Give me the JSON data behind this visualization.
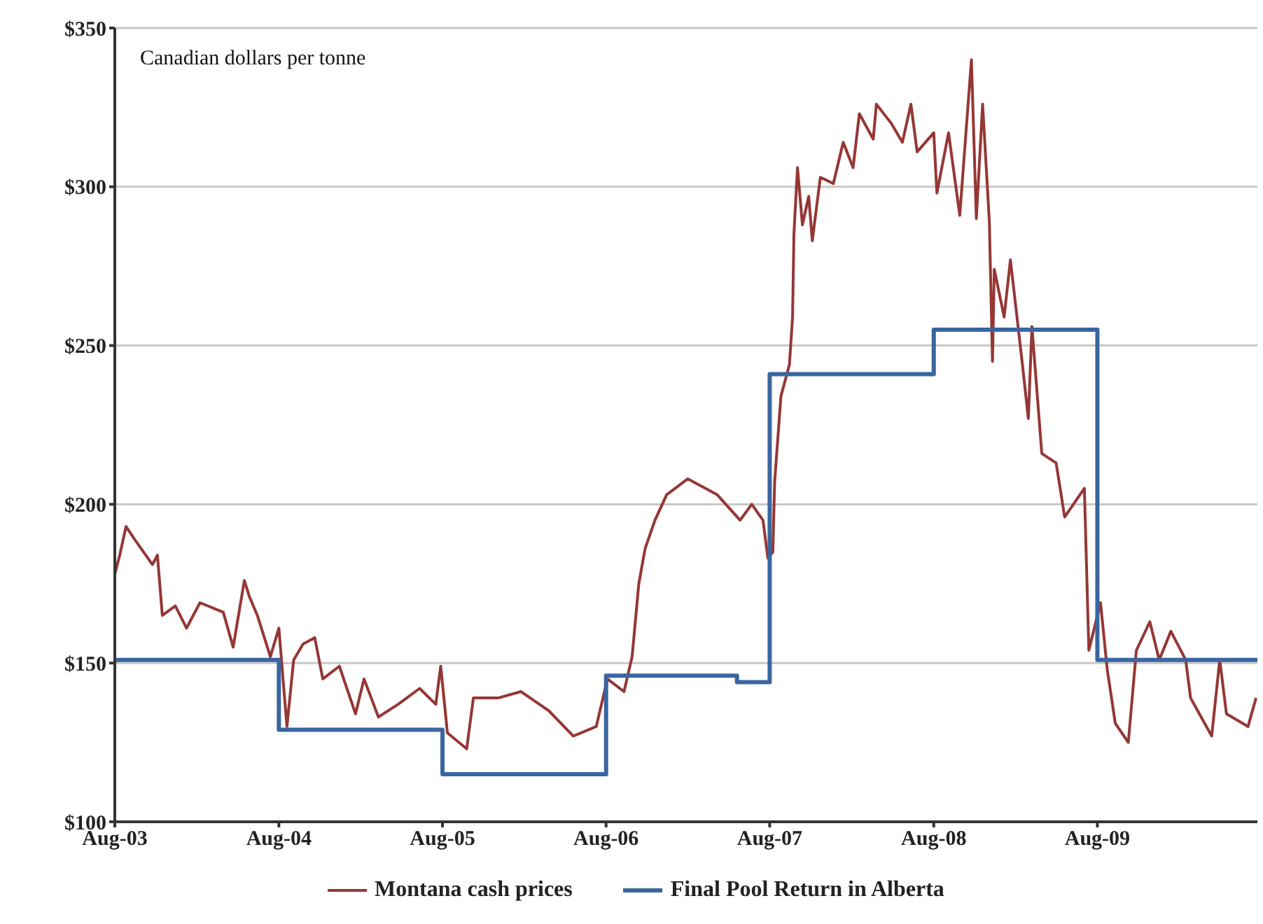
{
  "chart_data": {
    "type": "line",
    "annotations": [
      "Canadian dollars per tonne"
    ],
    "xlim": [
      "2003-08-01",
      "2010-07-24"
    ],
    "xticks": [
      {
        "value": "2003-08-01",
        "label": "Aug-03"
      },
      {
        "value": "2004-08-01",
        "label": "Aug-04"
      },
      {
        "value": "2005-08-01",
        "label": "Aug-05"
      },
      {
        "value": "2006-08-01",
        "label": "Aug-06"
      },
      {
        "value": "2007-08-01",
        "label": "Aug-07"
      },
      {
        "value": "2008-08-01",
        "label": "Aug-08"
      },
      {
        "value": "2009-08-01",
        "label": "Aug-09"
      }
    ],
    "ylim": [
      100,
      350
    ],
    "yticks": [
      {
        "value": 100,
        "label": "$100"
      },
      {
        "value": 150,
        "label": "$150"
      },
      {
        "value": 200,
        "label": "$200"
      },
      {
        "value": 250,
        "label": "$250"
      },
      {
        "value": 300,
        "label": "$300"
      },
      {
        "value": 350,
        "label": "$350"
      }
    ],
    "grid": "y",
    "legend": "bottom",
    "series": [
      {
        "name": "Montana cash prices",
        "color": "#953735",
        "x": [
          "2003-08-01",
          "2003-08-12",
          "2003-08-26",
          "2003-09-14",
          "2003-10-24",
          "2003-11-04",
          "2003-11-15",
          "2003-12-14",
          "2004-01-08",
          "2004-02-07",
          "2004-03-30",
          "2004-04-21",
          "2004-05-16",
          "2004-05-27",
          "2004-06-14",
          "2004-07-13",
          "2004-08-01",
          "2004-08-19",
          "2004-09-03",
          "2004-09-24",
          "2004-10-20",
          "2004-11-07",
          "2004-12-14",
          "2005-01-19",
          "2005-02-07",
          "2005-03-11",
          "2005-04-24",
          "2005-06-11",
          "2005-07-17",
          "2005-07-28",
          "2005-08-12",
          "2005-09-24",
          "2005-10-09",
          "2005-12-03",
          "2006-01-23",
          "2006-03-26",
          "2006-05-20",
          "2006-07-10",
          "2006-08-04",
          "2006-09-10",
          "2006-09-28",
          "2006-10-13",
          "2006-10-27",
          "2006-11-18",
          "2006-12-14",
          "2007-01-30",
          "2007-04-06",
          "2007-05-27",
          "2007-06-22",
          "2007-07-17",
          "2007-07-28",
          "2007-08-08",
          "2007-08-12",
          "2007-08-26",
          "2007-09-14",
          "2007-09-21",
          "2007-09-24",
          "2007-10-02",
          "2007-10-13",
          "2007-10-27",
          "2007-11-04",
          "2007-11-22",
          "2007-12-21",
          "2008-01-12",
          "2008-02-03",
          "2008-02-17",
          "2008-03-19",
          "2008-03-26",
          "2008-04-28",
          "2008-05-23",
          "2008-06-11",
          "2008-06-25",
          "2008-08-01",
          "2008-08-08",
          "2008-09-03",
          "2008-09-28",
          "2008-10-24",
          "2008-11-04",
          "2008-11-18",
          "2008-12-03",
          "2008-12-10",
          "2008-12-14",
          "2009-01-05",
          "2009-01-19",
          "2009-02-14",
          "2009-02-28",
          "2009-03-08",
          "2009-03-30",
          "2009-05-01",
          "2009-05-20",
          "2009-07-03",
          "2009-07-13",
          "2009-08-08",
          "2009-08-23",
          "2009-09-10",
          "2009-10-09",
          "2009-10-27",
          "2009-11-26",
          "2009-12-17",
          "2010-01-12",
          "2010-02-14",
          "2010-02-25",
          "2010-04-13",
          "2010-05-01",
          "2010-05-16",
          "2010-07-03",
          "2010-07-21"
        ],
        "values": [
          178,
          184,
          193,
          189,
          181,
          184,
          165,
          168,
          161,
          169,
          166,
          155,
          176,
          171,
          165,
          152,
          161,
          130,
          151,
          156,
          158,
          145,
          149,
          134,
          145,
          133,
          137,
          142,
          137,
          149,
          128,
          123,
          139,
          139,
          141,
          135,
          127,
          130,
          145,
          141,
          152,
          175,
          186,
          195,
          203,
          208,
          203,
          195,
          200,
          195,
          183,
          185,
          207,
          234,
          244,
          259,
          285,
          306,
          288,
          297,
          283,
          303,
          301,
          314,
          306,
          323,
          315,
          326,
          320,
          314,
          326,
          311,
          317,
          298,
          317,
          291,
          340,
          290,
          326,
          289,
          245,
          274,
          259,
          277,
          245,
          227,
          256,
          216,
          213,
          196,
          205,
          154,
          169,
          148,
          131,
          125,
          154,
          163,
          151,
          160,
          151,
          139,
          127,
          151,
          134,
          130,
          139
        ]
      },
      {
        "name": "Final Pool Return in Alberta",
        "type": "step",
        "color": "#3a66a0",
        "x": [
          "2003-08-01",
          "2004-08-01",
          "2005-08-01",
          "2006-08-01",
          "2007-05-20",
          "2007-08-01",
          "2008-08-01",
          "2009-08-01",
          "2010-07-24"
        ],
        "values": [
          151,
          129,
          115,
          146,
          144,
          241,
          255,
          151,
          151
        ]
      }
    ]
  }
}
